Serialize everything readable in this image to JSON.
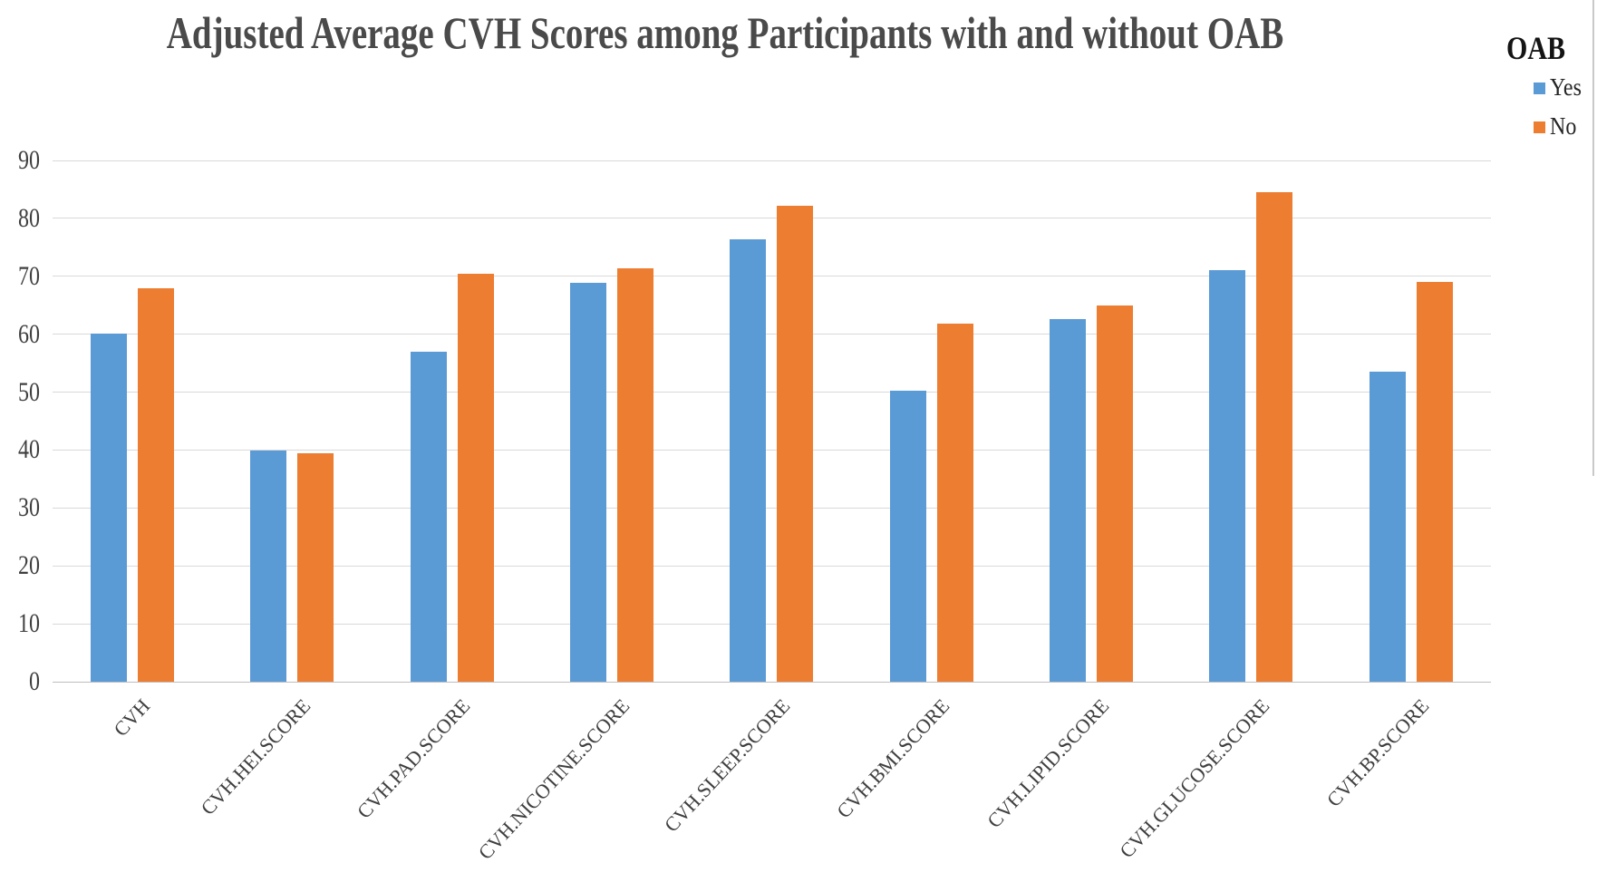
{
  "legend": {
    "title": "OAB",
    "items": [
      {
        "label": "Yes",
        "color": "#5B9BD5"
      },
      {
        "label": "No",
        "color": "#ED7D31"
      }
    ]
  },
  "chart_data": {
    "type": "bar",
    "title": "Adjusted Average CVH Scores among Participants with and without OAB",
    "xlabel": "",
    "ylabel": "",
    "ylim": [
      0,
      90
    ],
    "y_ticks": [
      0,
      10,
      20,
      30,
      40,
      50,
      60,
      70,
      80,
      90
    ],
    "grid": true,
    "legend_position": "top-right",
    "categories": [
      "CVH",
      "CVH.HEI.SCORE",
      "CVH.PAD.SCORE",
      "CVH.NICOTINE.SCORE",
      "CVH.SLEEP.SCORE",
      "CVH.BMI.SCORE",
      "CVH.LIPID.SCORE",
      "CVH.GLUCOSE.SCORE",
      "CVH.BP.SCORE"
    ],
    "series": [
      {
        "name": "Yes",
        "color": "#5B9BD5",
        "values": [
          60.1,
          39.9,
          56.9,
          68.9,
          76.4,
          50.2,
          62.6,
          71.1,
          53.5
        ]
      },
      {
        "name": "No",
        "color": "#ED7D31",
        "values": [
          68.0,
          39.5,
          70.4,
          71.4,
          82.2,
          61.8,
          64.9,
          84.6,
          69.0
        ]
      }
    ],
    "grid_color": "#d9d9d9",
    "axis_line_color": "#bdbdbd",
    "title_color": "#4a4a4a"
  }
}
